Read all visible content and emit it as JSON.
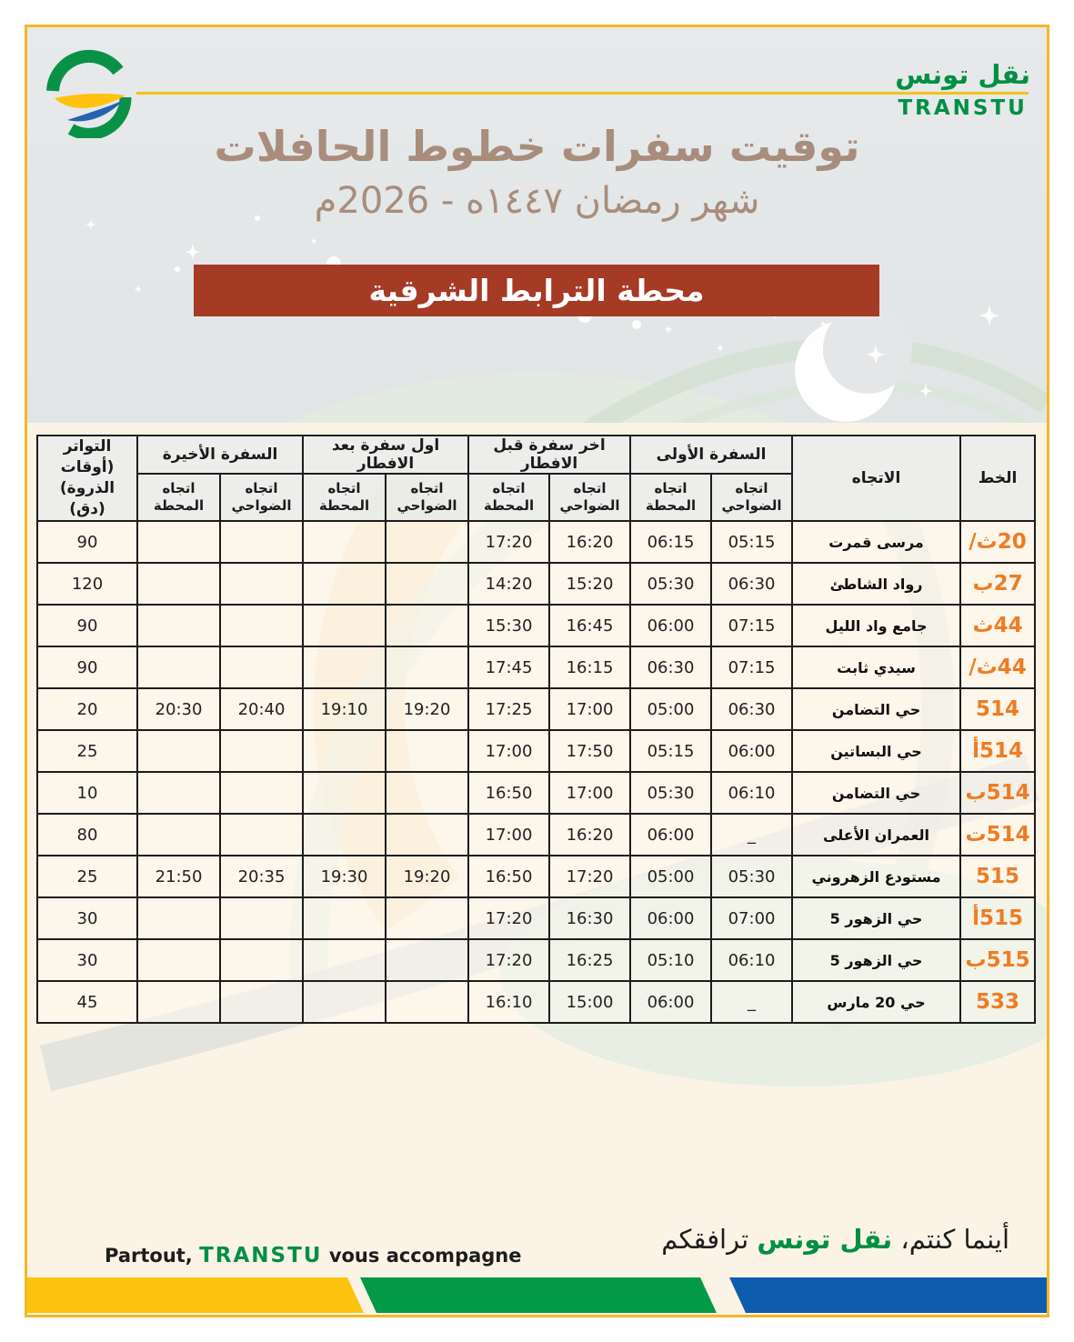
{
  "brand": {
    "arabic": "نقل تونس",
    "latin": "TRANSTU"
  },
  "header": {
    "title": "توقيت سفرات خطوط الحافلات",
    "subtitle": "شهر رمضان ١٤٤٧ه - 2026م",
    "station": "محطة الترابط الشرقية"
  },
  "table": {
    "headers": {
      "line": "الخط",
      "direction": "الاتجاه",
      "first_trip": "السفرة الأولى",
      "last_before_iftar": "اخر سفرة قبل الافطار",
      "first_after_iftar": "اول سفرة بعد الافطار",
      "last_trip": "السفرة الأخيرة",
      "frequency": "التواتر (أوقات الذروة) (دق)",
      "to_station": "اتجاه المحطة",
      "to_suburbs": "اتجاه الضواحي"
    },
    "rows": [
      {
        "line": "20ث/",
        "destination": "مرسى قمرت",
        "first_suburbs": "05:15",
        "first_station": "06:15",
        "before_suburbs": "16:20",
        "before_station": "17:20",
        "after_suburbs": "",
        "after_station": "",
        "last_suburbs": "",
        "last_station": "",
        "frequency": "90"
      },
      {
        "line": "27ب",
        "destination": "رواد الشاطئ",
        "first_suburbs": "06:30",
        "first_station": "05:30",
        "before_suburbs": "15:20",
        "before_station": "14:20",
        "after_suburbs": "",
        "after_station": "",
        "last_suburbs": "",
        "last_station": "",
        "frequency": "120"
      },
      {
        "line": "44ث",
        "destination": "جامع واد الليل",
        "first_suburbs": "07:15",
        "first_station": "06:00",
        "before_suburbs": "16:45",
        "before_station": "15:30",
        "after_suburbs": "",
        "after_station": "",
        "last_suburbs": "",
        "last_station": "",
        "frequency": "90"
      },
      {
        "line": "44ث/",
        "destination": "سيدي ثابت",
        "first_suburbs": "07:15",
        "first_station": "06:30",
        "before_suburbs": "16:15",
        "before_station": "17:45",
        "after_suburbs": "",
        "after_station": "",
        "last_suburbs": "",
        "last_station": "",
        "frequency": "90"
      },
      {
        "line": "514",
        "destination": "حي التضامن",
        "first_suburbs": "06:30",
        "first_station": "05:00",
        "before_suburbs": "17:00",
        "before_station": "17:25",
        "after_suburbs": "19:20",
        "after_station": "19:10",
        "last_suburbs": "20:40",
        "last_station": "20:30",
        "frequency": "20"
      },
      {
        "line": "514أ",
        "destination": "حي البساتين",
        "first_suburbs": "06:00",
        "first_station": "05:15",
        "before_suburbs": "17:50",
        "before_station": "17:00",
        "after_suburbs": "",
        "after_station": "",
        "last_suburbs": "",
        "last_station": "",
        "frequency": "25"
      },
      {
        "line": "514ب",
        "destination": "حي التضامن",
        "first_suburbs": "06:10",
        "first_station": "05:30",
        "before_suburbs": "17:00",
        "before_station": "16:50",
        "after_suburbs": "",
        "after_station": "",
        "last_suburbs": "",
        "last_station": "",
        "frequency": "10"
      },
      {
        "line": "514ت",
        "destination": "العمران الأعلى",
        "first_suburbs": "_",
        "first_station": "06:00",
        "before_suburbs": "16:20",
        "before_station": "17:00",
        "after_suburbs": "",
        "after_station": "",
        "last_suburbs": "",
        "last_station": "",
        "frequency": "80"
      },
      {
        "line": "515",
        "destination": "مستودع الزهروني",
        "first_suburbs": "05:30",
        "first_station": "05:00",
        "before_suburbs": "17:20",
        "before_station": "16:50",
        "after_suburbs": "19:20",
        "after_station": "19:30",
        "last_suburbs": "20:35",
        "last_station": "21:50",
        "frequency": "25"
      },
      {
        "line": "515أ",
        "destination": "حي الزهور 5",
        "first_suburbs": "07:00",
        "first_station": "06:00",
        "before_suburbs": "16:30",
        "before_station": "17:20",
        "after_suburbs": "",
        "after_station": "",
        "last_suburbs": "",
        "last_station": "",
        "frequency": "30"
      },
      {
        "line": "515ب",
        "destination": "حي الزهور 5",
        "first_suburbs": "06:10",
        "first_station": "05:10",
        "before_suburbs": "16:25",
        "before_station": "17:20",
        "after_suburbs": "",
        "after_station": "",
        "last_suburbs": "",
        "last_station": "",
        "frequency": "30"
      },
      {
        "line": "533",
        "destination": "حي 20 مارس",
        "first_suburbs": "_",
        "first_station": "06:00",
        "before_suburbs": "15:00",
        "before_station": "16:10",
        "after_suburbs": "",
        "after_station": "",
        "last_suburbs": "",
        "last_station": "",
        "frequency": "45"
      }
    ]
  },
  "footer": {
    "fr_prefix": "Partout,",
    "fr_brand": "TRANSTU",
    "fr_suffix": "vous accompagne",
    "ar_prefix": "أينما كنتم،",
    "ar_brand": "نقل تونس",
    "ar_suffix": "ترافقكم"
  },
  "colors": {
    "accent_orange": "#ee7c24",
    "brand_green": "#008f43",
    "banner_red": "#a53a25",
    "title_taupe": "#a88d7d",
    "frame_gold": "#f2b826",
    "stripe_yellow": "#fdc40f",
    "stripe_green": "#029a47",
    "stripe_blue": "#0e5cad"
  }
}
